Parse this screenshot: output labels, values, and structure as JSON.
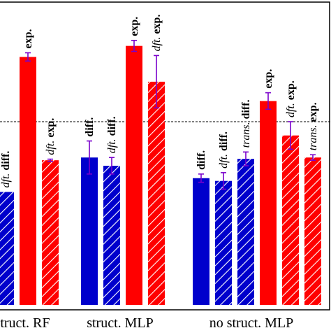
{
  "chart_data": {
    "type": "bar",
    "title": "",
    "xlabel": "",
    "ylabel": "",
    "ylim": [
      0,
      100
    ],
    "reference_line": 66.5,
    "grid": false,
    "legend": "none",
    "colors": {
      "blue": "#0000cc",
      "red": "#ff0000",
      "error_bar": "#7a00cc",
      "reference_line": "#000000"
    },
    "groups": [
      {
        "label": "struct. RF",
        "bars": [
          {
            "label_prefix": "dft.",
            "label": "diff.",
            "value": 41,
            "err": 0,
            "color": "blue",
            "hatched": true
          },
          {
            "label_prefix": "",
            "label": "exp.",
            "value": 90,
            "err": 1.5,
            "color": "red",
            "hatched": false
          },
          {
            "label_prefix": "dft.",
            "label": "exp.",
            "value": 52.5,
            "err": 0.4,
            "color": "red",
            "hatched": true
          }
        ]
      },
      {
        "label": "struct. MLP",
        "bars": [
          {
            "label_prefix": "",
            "label": "diff.",
            "value": 53.5,
            "err": 6,
            "color": "blue",
            "hatched": false
          },
          {
            "label_prefix": "dft.",
            "label": "diff.",
            "value": 50.5,
            "err": 3,
            "color": "blue",
            "hatched": true
          },
          {
            "label_prefix": "",
            "label": "exp.",
            "value": 94,
            "err": 2,
            "color": "red",
            "hatched": false
          },
          {
            "label_prefix": "dft.",
            "label": "exp.",
            "value": 81,
            "err": 9.5,
            "color": "red",
            "hatched": true
          }
        ]
      },
      {
        "label": "no struct. MLP",
        "bars": [
          {
            "label_prefix": "",
            "label": "diff.",
            "value": 46,
            "err": 1.5,
            "color": "blue",
            "hatched": false
          },
          {
            "label_prefix": "dft.",
            "label": "diff.",
            "value": 45,
            "err": 3,
            "color": "blue",
            "hatched": true
          },
          {
            "label_prefix": "trans.",
            "label": "diff.",
            "value": 53,
            "err": 2.5,
            "color": "blue",
            "hatched": true
          },
          {
            "label_prefix": "",
            "label": "exp.",
            "value": 74,
            "err": 3,
            "color": "red",
            "hatched": false
          },
          {
            "label_prefix": "dft.",
            "label": "exp.",
            "value": 61.5,
            "err": 5,
            "color": "red",
            "hatched": true
          },
          {
            "label_prefix": "trans.",
            "label": "exp.",
            "value": 53.5,
            "err": 1,
            "color": "red",
            "hatched": true
          }
        ]
      }
    ]
  }
}
